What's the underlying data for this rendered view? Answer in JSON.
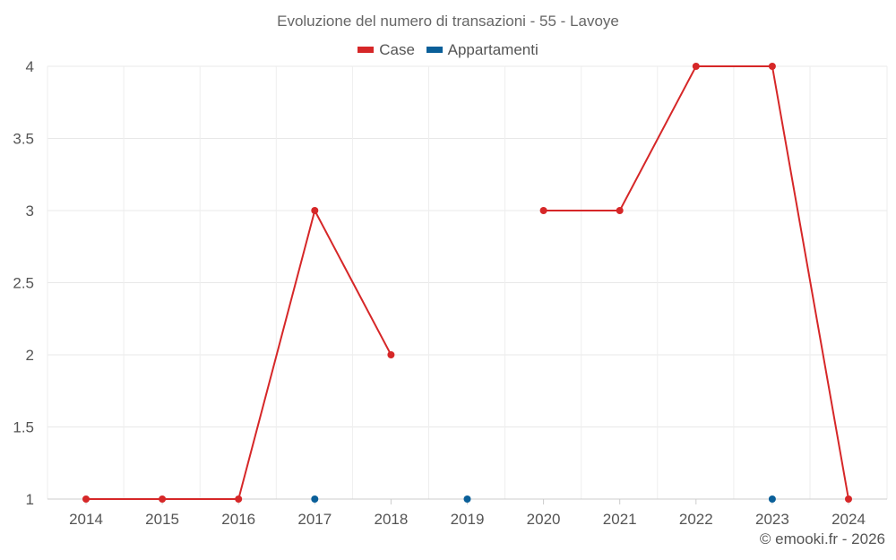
{
  "chart_data": {
    "type": "line",
    "title": "Evoluzione del numero di transazioni - 55 - Lavoye",
    "xlabel": "",
    "ylabel": "",
    "categories": [
      "2014",
      "2015",
      "2016",
      "2017",
      "2018",
      "2019",
      "2020",
      "2021",
      "2022",
      "2023",
      "2024"
    ],
    "ylim": [
      1,
      4
    ],
    "yticks": [
      "1",
      "1.5",
      "2",
      "2.5",
      "3",
      "3.5",
      "4"
    ],
    "series": [
      {
        "name": "Case",
        "color": "#d62728",
        "values": [
          1,
          1,
          1,
          3,
          2,
          null,
          3,
          3,
          4,
          4,
          1
        ]
      },
      {
        "name": "Appartamenti",
        "color": "#0a5f99",
        "values": [
          null,
          null,
          null,
          1,
          null,
          1,
          null,
          null,
          null,
          1,
          null
        ]
      }
    ],
    "grid": true,
    "legend_position": "top-center"
  },
  "footer": {
    "credit": "© emooki.fr - 2026"
  }
}
